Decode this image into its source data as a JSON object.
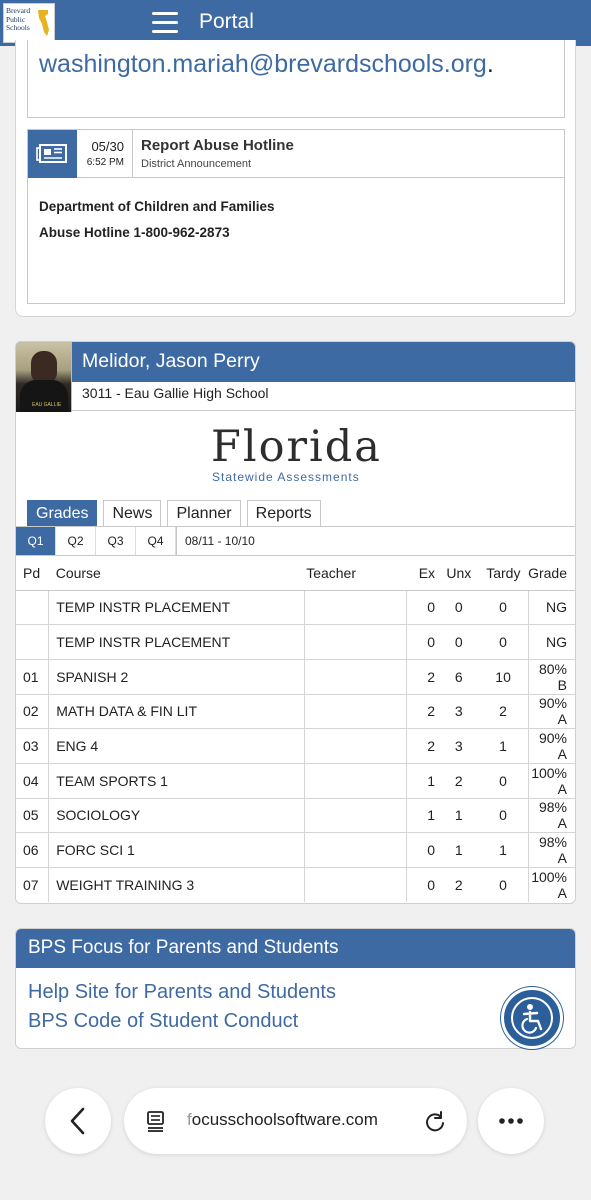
{
  "topbar": {
    "logo_text": [
      "Brevard",
      "Public",
      "Schools"
    ],
    "title": "Portal"
  },
  "email_section": {
    "email": "washington.mariah@brevardschools.org",
    "trailing": "."
  },
  "announcement": {
    "date": "05/30",
    "time": "6:52 PM",
    "title": "Report Abuse Hotline",
    "category": "District Announcement",
    "body_line1": "Department of Children and Families",
    "body_line2": "Abuse Hotline 1-800-962-2873"
  },
  "student": {
    "name": "Melidor, Jason Perry",
    "school": "3011 - Eau Gallie High School",
    "photo_caption": "EAU GALLIE"
  },
  "fsa_logo": {
    "word": "Florida",
    "sub_a": "Statewide",
    "sub_b": "Assessments"
  },
  "tabs": [
    {
      "label": "Grades",
      "active": true
    },
    {
      "label": "News",
      "active": false
    },
    {
      "label": "Planner",
      "active": false
    },
    {
      "label": "Reports",
      "active": false
    }
  ],
  "quarters": {
    "items": [
      "Q1",
      "Q2",
      "Q3",
      "Q4"
    ],
    "active": "Q1",
    "range": "08/11 - 10/10"
  },
  "grades_table": {
    "headers": {
      "pd": "Pd",
      "course": "Course",
      "teacher": "Teacher",
      "ex": "Ex",
      "unx": "Unx",
      "tardy": "Tardy",
      "grade": "Grade"
    },
    "rows": [
      {
        "pd": "",
        "course": "TEMP INSTR PLACEMENT",
        "teacher": "",
        "ex": "0",
        "unx": "0",
        "tardy": "0",
        "grade": "NG"
      },
      {
        "pd": "",
        "course": "TEMP INSTR PLACEMENT",
        "teacher": "",
        "ex": "0",
        "unx": "0",
        "tardy": "0",
        "grade": "NG"
      },
      {
        "pd": "01",
        "course": "SPANISH 2",
        "teacher": "",
        "ex": "2",
        "unx": "6",
        "tardy": "10",
        "grade": "80% B"
      },
      {
        "pd": "02",
        "course": "MATH DATA & FIN LIT",
        "teacher": "",
        "ex": "2",
        "unx": "3",
        "tardy": "2",
        "grade": "90% A"
      },
      {
        "pd": "03",
        "course": "ENG 4",
        "teacher": "",
        "ex": "2",
        "unx": "3",
        "tardy": "1",
        "grade": "90% A"
      },
      {
        "pd": "04",
        "course": "TEAM SPORTS 1",
        "teacher": "",
        "ex": "1",
        "unx": "2",
        "tardy": "0",
        "grade": "100% A"
      },
      {
        "pd": "05",
        "course": "SOCIOLOGY",
        "teacher": "",
        "ex": "1",
        "unx": "1",
        "tardy": "0",
        "grade": "98% A"
      },
      {
        "pd": "06",
        "course": "FORC SCI 1",
        "teacher": "",
        "ex": "0",
        "unx": "1",
        "tardy": "1",
        "grade": "98% A"
      },
      {
        "pd": "07",
        "course": "WEIGHT TRAINING 3",
        "teacher": "",
        "ex": "0",
        "unx": "2",
        "tardy": "0",
        "grade": "100% A"
      }
    ]
  },
  "bps": {
    "title": "BPS Focus for Parents and Students",
    "link1": "Help Site for Parents and Students",
    "link2": "BPS Code of Student Conduct"
  },
  "browser": {
    "url_first": "f",
    "url_rest": "ocusschoolsoftware.com",
    "back_icon": "chevron-left-icon",
    "reader_icon": "reader-mode-icon",
    "reload_icon": "reload-icon",
    "more_icon": "more-dots-icon"
  },
  "colors": {
    "brand_blue": "#3e6aa3",
    "accessibility_blue": "#2c5f99"
  }
}
